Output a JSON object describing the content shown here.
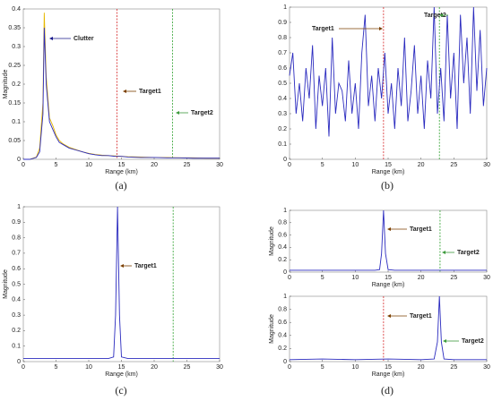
{
  "chart_data": [
    {
      "type": "line",
      "xlabel": "Range (km)",
      "ylabel": "Magnitude",
      "xlim": [
        0,
        30
      ],
      "xticks": [
        0,
        5,
        10,
        15,
        20,
        25,
        30
      ],
      "ylim": [
        0,
        0.4
      ],
      "yticks": [
        0,
        0.05,
        0.1,
        0.15,
        0.2,
        0.25,
        0.3,
        0.35,
        0.4
      ],
      "x": [
        0,
        1,
        2,
        2.5,
        3,
        3.2,
        3.5,
        4,
        4.5,
        5,
        5.5,
        6,
        7,
        8,
        9,
        10,
        11,
        12,
        13,
        14,
        15,
        16,
        18,
        20,
        22,
        24,
        26,
        28,
        30
      ],
      "series": [
        {
          "color": "#e6b800",
          "values": [
            0,
            0,
            0.006,
            0.03,
            0.15,
            0.39,
            0.22,
            0.11,
            0.09,
            0.065,
            0.05,
            0.042,
            0.032,
            0.026,
            0.02,
            0.016,
            0.013,
            0.011,
            0.01,
            0.009,
            0.008,
            0.007,
            0.006,
            0.005,
            0.005,
            0.004,
            0.004,
            0.003,
            0.003
          ]
        },
        {
          "color": "#2b2bbf",
          "values": [
            0,
            0,
            0.005,
            0.02,
            0.12,
            0.35,
            0.2,
            0.1,
            0.08,
            0.06,
            0.045,
            0.04,
            0.03,
            0.025,
            0.02,
            0.015,
            0.012,
            0.01,
            0.01,
            0.008,
            0.008,
            0.006,
            0.005,
            0.005,
            0.004,
            0.004,
            0.003,
            0.003,
            0.003
          ]
        }
      ],
      "markers": [
        {
          "x": 14.3,
          "color": "#d62728"
        },
        {
          "x": 22.8,
          "color": "#2ca02c"
        }
      ],
      "annotations": [
        {
          "text": "Clutter",
          "color": "#1a1a8c"
        },
        {
          "text": "Target1",
          "color": "#7b3f00"
        },
        {
          "text": "Target2",
          "color": "#3c9a3c"
        }
      ]
    },
    {
      "type": "line",
      "xlabel": "Range (km)",
      "xlim": [
        0,
        30
      ],
      "xticks": [
        0,
        5,
        10,
        15,
        20,
        25,
        30
      ],
      "ylim": [
        0,
        1
      ],
      "yticks": [
        0,
        0.1,
        0.2,
        0.3,
        0.4,
        0.5,
        0.6,
        0.7,
        0.8,
        0.9,
        1
      ],
      "x": [
        0,
        0.5,
        1,
        1.5,
        2,
        2.5,
        3,
        3.5,
        4,
        4.5,
        5,
        5.5,
        6,
        6.5,
        7,
        7.5,
        8,
        8.5,
        9,
        9.5,
        10,
        10.5,
        11,
        11.5,
        12,
        12.5,
        13,
        13.5,
        14,
        14.5,
        15,
        15.5,
        16,
        16.5,
        17,
        17.5,
        18,
        18.5,
        19,
        19.5,
        20,
        20.5,
        21,
        21.5,
        22,
        22.5,
        23,
        23.5,
        24,
        24.5,
        25,
        25.5,
        26,
        26.5,
        27,
        27.5,
        28,
        28.5,
        29,
        29.5,
        30
      ],
      "series": [
        {
          "color": "#2b2bbf",
          "values": [
            0.55,
            0.7,
            0.3,
            0.5,
            0.25,
            0.6,
            0.4,
            0.75,
            0.2,
            0.55,
            0.35,
            0.6,
            0.15,
            0.8,
            0.3,
            0.5,
            0.45,
            0.25,
            0.65,
            0.3,
            0.5,
            0.2,
            0.7,
            0.95,
            0.35,
            0.55,
            0.25,
            0.6,
            0.4,
            0.7,
            0.3,
            0.5,
            0.2,
            0.6,
            0.35,
            0.8,
            0.25,
            0.45,
            0.75,
            0.3,
            0.55,
            0.2,
            0.65,
            0.4,
            1.0,
            0.3,
            0.6,
            0.25,
            0.95,
            0.4,
            0.7,
            0.2,
            0.95,
            0.5,
            0.8,
            0.3,
            1.0,
            0.45,
            0.85,
            0.35,
            0.6
          ]
        }
      ],
      "markers": [
        {
          "x": 14.3,
          "color": "#d62728"
        },
        {
          "x": 22.8,
          "color": "#2ca02c"
        }
      ],
      "annotations": [
        {
          "text": "Target1",
          "color": "#7b3f00"
        },
        {
          "text": "Target2",
          "color": "#3c9a3c"
        }
      ]
    },
    {
      "type": "line",
      "xlabel": "Range (km)",
      "ylabel": "Magnitude",
      "xlim": [
        0,
        30
      ],
      "xticks": [
        0,
        5,
        10,
        15,
        20,
        25,
        30
      ],
      "ylim": [
        0,
        1
      ],
      "yticks": [
        0,
        0.1,
        0.2,
        0.3,
        0.4,
        0.5,
        0.6,
        0.7,
        0.8,
        0.9,
        1
      ],
      "x": [
        0,
        5,
        10,
        13,
        13.8,
        14.1,
        14.4,
        14.7,
        15,
        16,
        20,
        25,
        30
      ],
      "series": [
        {
          "color": "#2b2bbf",
          "values": [
            0.02,
            0.02,
            0.02,
            0.02,
            0.03,
            0.3,
            1,
            0.3,
            0.03,
            0.02,
            0.02,
            0.02,
            0.02
          ]
        }
      ],
      "markers": [
        {
          "x": 22.9,
          "color": "#2ca02c"
        }
      ],
      "annotations": [
        {
          "text": "Target1",
          "color": "#7b3f00"
        }
      ]
    },
    {
      "type": "line",
      "xlabel": "Range (km)",
      "ylabel": "Magnitude",
      "xlim": [
        0,
        30
      ],
      "xticks": [
        0,
        5,
        10,
        15,
        20,
        25,
        30
      ],
      "ylim": [
        0,
        1
      ],
      "yticks": [
        0,
        0.2,
        0.4,
        0.6,
        0.8,
        1
      ],
      "x": [
        0,
        5,
        10,
        13,
        13.7,
        14,
        14.3,
        14.6,
        15,
        16,
        20,
        25,
        30
      ],
      "series": [
        {
          "color": "#2b2bbf",
          "values": [
            0.03,
            0.03,
            0.03,
            0.03,
            0.04,
            0.3,
            1,
            0.3,
            0.04,
            0.03,
            0.03,
            0.03,
            0.03
          ]
        }
      ],
      "markers": [
        {
          "x": 22.9,
          "color": "#2ca02c"
        }
      ],
      "annotations": [
        {
          "text": "Target1",
          "color": "#7b3f00"
        },
        {
          "text": "Target2",
          "color": "#3c9a3c"
        }
      ]
    },
    {
      "type": "line",
      "xlabel": "Range (km)",
      "ylabel": "Magnitude",
      "xlim": [
        0,
        30
      ],
      "xticks": [
        0,
        5,
        10,
        15,
        20,
        25,
        30
      ],
      "ylim": [
        0,
        1
      ],
      "yticks": [
        0,
        0.2,
        0.4,
        0.6,
        0.8,
        1
      ],
      "x": [
        0,
        5,
        10,
        15,
        20,
        22,
        22.5,
        22.8,
        23.1,
        23.5,
        25,
        30
      ],
      "series": [
        {
          "color": "#2b2bbf",
          "values": [
            0.03,
            0.04,
            0.03,
            0.04,
            0.03,
            0.04,
            0.3,
            1,
            0.3,
            0.04,
            0.03,
            0.03
          ]
        }
      ],
      "markers": [
        {
          "x": 14.3,
          "color": "#d62728"
        }
      ],
      "annotations": [
        {
          "text": "Target1",
          "color": "#7b3f00"
        },
        {
          "text": "Target2",
          "color": "#3c9a3c"
        }
      ]
    }
  ],
  "panel_labels": [
    "(a)",
    "(b)",
    "(c)",
    "(d)"
  ]
}
